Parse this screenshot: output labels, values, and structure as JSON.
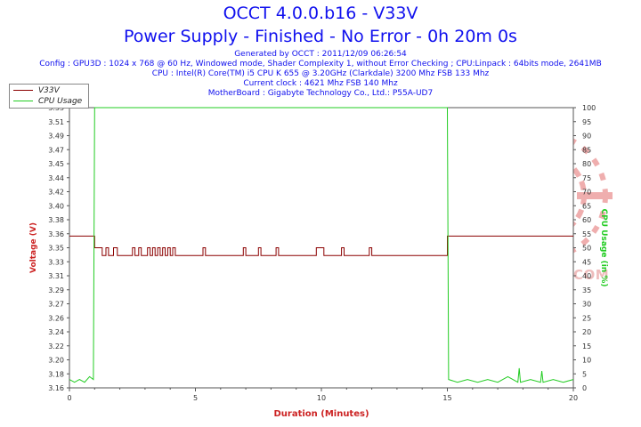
{
  "header": {
    "title": "OCCT 4.0.0.b16 - V33V",
    "subtitle": "Power Supply - Finished - No Error - 0h 20m 0s",
    "info_lines": [
      "Generated by OCCT : 2011/12/09 06:26:54",
      "Config : GPU3D : 1024 x 768 @ 60 Hz, Windowed mode, Shader Complexity 1, without Error Checking ; CPU:Linpack : 64bits mode, 2641MB",
      "CPU : Intel(R) Core(TM) i5 CPU K 655 @ 3.20GHz (Clarkdale) 3200 Mhz FSB 133 Mhz",
      "Current clock : 4621 Mhz FSB 140 Mhz",
      "MotherBoard : Gigabyte Technology Co., Ltd.: P55A-UD7"
    ]
  },
  "watermark": {
    "text": "VMODTECH.COM"
  },
  "chart_data": {
    "type": "line",
    "xlabel": "Duration (Minutes)",
    "ylabel": "Voltage (V)",
    "y2label": "CPU Usage (in %)",
    "xlim": [
      0,
      20
    ],
    "ylim": [
      3.16,
      3.52
    ],
    "y2lim": [
      0,
      100
    ],
    "x_ticks": [
      "0",
      "5",
      "10",
      "15",
      "20"
    ],
    "y_ticks": [
      "3.16",
      "3.18",
      "3.20",
      "3.22",
      "3.24",
      "3.26",
      "3.27",
      "3.29",
      "3.31",
      "3.33",
      "3.35",
      "3.36",
      "3.38",
      "3.40",
      "3.42",
      "3.44",
      "3.45",
      "3.47",
      "3.49",
      "3.51",
      "3.53"
    ],
    "y2_ticks": [
      "0",
      "5",
      "10",
      "15",
      "20",
      "25",
      "30",
      "35",
      "40",
      "45",
      "50",
      "55",
      "60",
      "65",
      "70",
      "75",
      "80",
      "85",
      "90",
      "95",
      "100"
    ],
    "legend_position": "top-left",
    "series": [
      {
        "name": "V33V",
        "color": "#8b0000",
        "axis": "left",
        "points": [
          [
            0,
            3.355
          ],
          [
            1.0,
            3.355
          ],
          [
            1.0,
            3.34
          ],
          [
            1.3,
            3.34
          ],
          [
            1.3,
            3.33
          ],
          [
            1.45,
            3.33
          ],
          [
            1.45,
            3.34
          ],
          [
            1.55,
            3.34
          ],
          [
            1.55,
            3.33
          ],
          [
            1.75,
            3.33
          ],
          [
            1.75,
            3.34
          ],
          [
            1.9,
            3.34
          ],
          [
            1.9,
            3.33
          ],
          [
            2.5,
            3.33
          ],
          [
            2.5,
            3.34
          ],
          [
            2.6,
            3.34
          ],
          [
            2.6,
            3.33
          ],
          [
            2.75,
            3.33
          ],
          [
            2.75,
            3.34
          ],
          [
            2.85,
            3.34
          ],
          [
            2.85,
            3.33
          ],
          [
            3.1,
            3.33
          ],
          [
            3.1,
            3.34
          ],
          [
            3.2,
            3.34
          ],
          [
            3.2,
            3.33
          ],
          [
            3.3,
            3.33
          ],
          [
            3.3,
            3.34
          ],
          [
            3.4,
            3.34
          ],
          [
            3.4,
            3.33
          ],
          [
            3.5,
            3.33
          ],
          [
            3.5,
            3.34
          ],
          [
            3.6,
            3.34
          ],
          [
            3.6,
            3.33
          ],
          [
            3.7,
            3.33
          ],
          [
            3.7,
            3.34
          ],
          [
            3.8,
            3.34
          ],
          [
            3.8,
            3.33
          ],
          [
            3.9,
            3.33
          ],
          [
            3.9,
            3.34
          ],
          [
            4.0,
            3.34
          ],
          [
            4.0,
            3.33
          ],
          [
            4.1,
            3.33
          ],
          [
            4.1,
            3.34
          ],
          [
            4.2,
            3.34
          ],
          [
            4.2,
            3.33
          ],
          [
            5.3,
            3.33
          ],
          [
            5.3,
            3.34
          ],
          [
            5.4,
            3.34
          ],
          [
            5.4,
            3.33
          ],
          [
            6.9,
            3.33
          ],
          [
            6.9,
            3.34
          ],
          [
            7.0,
            3.34
          ],
          [
            7.0,
            3.33
          ],
          [
            7.5,
            3.33
          ],
          [
            7.5,
            3.34
          ],
          [
            7.6,
            3.34
          ],
          [
            7.6,
            3.33
          ],
          [
            8.2,
            3.33
          ],
          [
            8.2,
            3.34
          ],
          [
            8.3,
            3.34
          ],
          [
            8.3,
            3.33
          ],
          [
            9.8,
            3.33
          ],
          [
            9.8,
            3.34
          ],
          [
            10.1,
            3.34
          ],
          [
            10.1,
            3.33
          ],
          [
            10.8,
            3.33
          ],
          [
            10.8,
            3.34
          ],
          [
            10.9,
            3.34
          ],
          [
            10.9,
            3.33
          ],
          [
            11.9,
            3.33
          ],
          [
            11.9,
            3.34
          ],
          [
            12.0,
            3.34
          ],
          [
            12.0,
            3.33
          ],
          [
            15.0,
            3.33
          ],
          [
            15.0,
            3.355
          ],
          [
            20,
            3.355
          ]
        ]
      },
      {
        "name": "CPU Usage",
        "color": "#22cc22",
        "axis": "right",
        "points": [
          [
            0,
            3
          ],
          [
            0.2,
            2
          ],
          [
            0.4,
            3
          ],
          [
            0.6,
            2
          ],
          [
            0.8,
            4
          ],
          [
            0.95,
            3
          ],
          [
            1.0,
            100
          ],
          [
            15.0,
            100
          ],
          [
            15.05,
            3
          ],
          [
            15.4,
            2
          ],
          [
            15.8,
            3
          ],
          [
            16.2,
            2
          ],
          [
            16.6,
            3
          ],
          [
            17.0,
            2
          ],
          [
            17.4,
            4
          ],
          [
            17.8,
            2
          ],
          [
            17.85,
            7
          ],
          [
            17.9,
            2
          ],
          [
            18.3,
            3
          ],
          [
            18.7,
            2
          ],
          [
            18.75,
            6
          ],
          [
            18.8,
            2
          ],
          [
            19.2,
            3
          ],
          [
            19.6,
            2
          ],
          [
            20,
            3
          ]
        ]
      }
    ]
  }
}
